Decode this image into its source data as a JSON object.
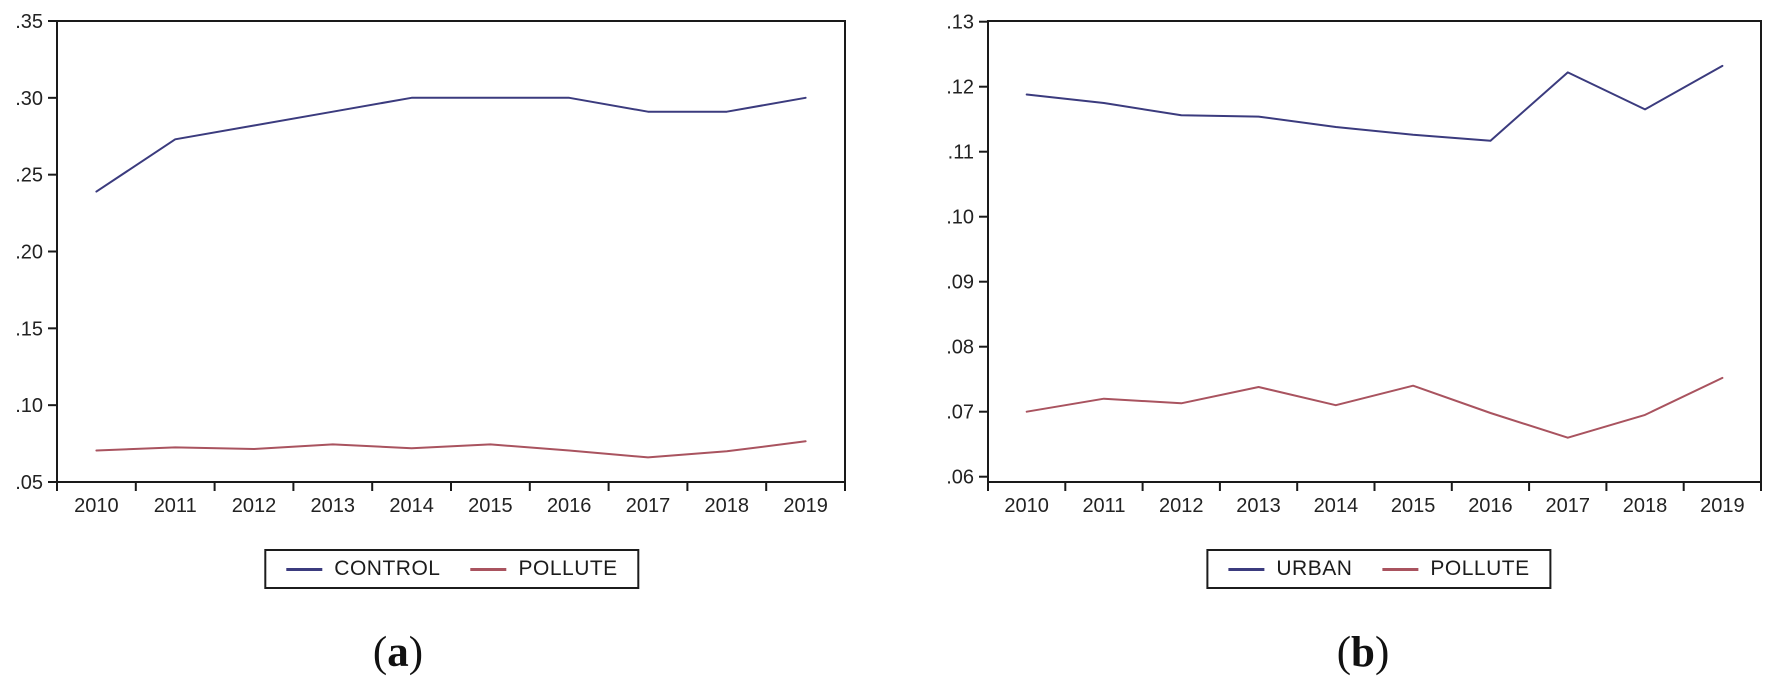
{
  "chart_data": [
    {
      "type": "line",
      "title": "",
      "xlabel": "",
      "ylabel": "",
      "categories": [
        "2010",
        "2011",
        "2012",
        "2013",
        "2014",
        "2015",
        "2016",
        "2017",
        "2018",
        "2019"
      ],
      "series": [
        {
          "name": "CONTROL",
          "color": "#3b3b7e",
          "values": [
            0.239,
            0.273,
            0.282,
            0.291,
            0.3,
            0.3,
            0.3,
            0.291,
            0.291,
            0.3
          ]
        },
        {
          "name": "POLLUTE",
          "color": "#a9535f",
          "values": [
            0.0705,
            0.0725,
            0.0715,
            0.0745,
            0.072,
            0.0745,
            0.0705,
            0.066,
            0.07,
            0.0765
          ]
        }
      ],
      "ylim": [
        0.05,
        0.35
      ],
      "yticks": [
        0.05,
        0.1,
        0.15,
        0.2,
        0.25,
        0.3,
        0.35
      ],
      "ytick_labels": [
        ".05",
        ".10",
        ".15",
        ".20",
        ".25",
        ".30",
        ".35"
      ],
      "grid": false,
      "legend_position": "bottom",
      "caption": {
        "open": "(",
        "letter": "a",
        "close": ")"
      }
    },
    {
      "type": "line",
      "title": "",
      "xlabel": "",
      "ylabel": "",
      "categories": [
        "2010",
        "2011",
        "2012",
        "2013",
        "2014",
        "2015",
        "2016",
        "2017",
        "2018",
        "2019"
      ],
      "series": [
        {
          "name": "URBAN",
          "color": "#3b3b7e",
          "values": [
            0.1188,
            0.1175,
            0.1156,
            0.1154,
            0.1138,
            0.1126,
            0.1117,
            0.1222,
            0.1165,
            0.1232
          ]
        },
        {
          "name": "POLLUTE",
          "color": "#a9535f",
          "values": [
            0.07,
            0.072,
            0.0713,
            0.0738,
            0.071,
            0.074,
            0.0698,
            0.066,
            0.0695,
            0.0752
          ]
        }
      ],
      "ylim": [
        0.06,
        0.13
      ],
      "yticks": [
        0.06,
        0.07,
        0.08,
        0.09,
        0.1,
        0.11,
        0.12,
        0.13
      ],
      "ytick_labels": [
        ".06",
        ".07",
        ".08",
        ".09",
        ".10",
        ".11",
        ".12",
        ".13"
      ],
      "grid": false,
      "legend_position": "bottom",
      "caption": {
        "open": "(",
        "letter": "b",
        "close": ")"
      }
    }
  ]
}
